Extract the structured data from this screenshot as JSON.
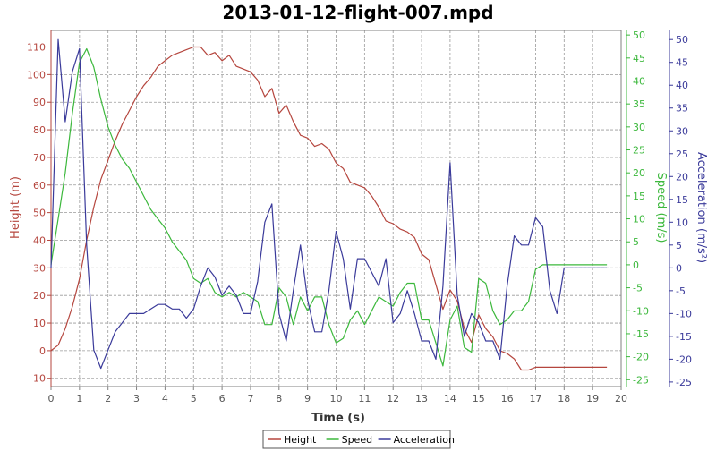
{
  "chart_data": {
    "type": "line",
    "title": "2013-01-12-flight-007.mpd",
    "xlabel": "Time (s)",
    "xlim": [
      0,
      20
    ],
    "xticks": [
      "0",
      "1",
      "2",
      "3",
      "4",
      "5",
      "6",
      "7",
      "8",
      "9",
      "10",
      "11",
      "12",
      "13",
      "14",
      "15",
      "16",
      "17",
      "18",
      "19",
      "20"
    ],
    "grid": true,
    "legend_placement": "bottom-center",
    "axes": [
      {
        "id": "height",
        "label": "Height (m)",
        "side": "left",
        "range": [
          -13,
          116
        ],
        "ticks": [
          "-10",
          "0",
          "10",
          "20",
          "30",
          "40",
          "50",
          "60",
          "70",
          "80",
          "90",
          "100",
          "110"
        ],
        "color": "#b5463e"
      },
      {
        "id": "speed",
        "label": "Speed (m/s)",
        "side": "right",
        "range": [
          -26.5,
          51
        ],
        "ticks": [
          "-25",
          "-20",
          "-15",
          "-10",
          "-5",
          "0",
          "5",
          "10",
          "15",
          "20",
          "25",
          "30",
          "35",
          "40",
          "45",
          "50"
        ],
        "color": "#3cb83c"
      },
      {
        "id": "accel",
        "label": "Acceleration (m/s²)",
        "side": "right",
        "range": [
          -26,
          52
        ],
        "ticks": [
          "-25",
          "-20",
          "-15",
          "-10",
          "-5",
          "0",
          "5",
          "10",
          "15",
          "20",
          "25",
          "30",
          "35",
          "40",
          "45",
          "50"
        ],
        "color": "#3a3a9a"
      }
    ],
    "series": [
      {
        "name": "Height",
        "axis": "height",
        "color": "#b5463e",
        "x": [
          0,
          0.25,
          0.5,
          0.75,
          1,
          1.25,
          1.5,
          1.75,
          2,
          2.25,
          2.5,
          2.75,
          3,
          3.25,
          3.5,
          3.75,
          4,
          4.25,
          4.5,
          4.75,
          5,
          5.25,
          5.5,
          5.75,
          6,
          6.25,
          6.5,
          6.75,
          7,
          7.25,
          7.5,
          7.75,
          8,
          8.25,
          8.5,
          8.75,
          9,
          9.25,
          9.5,
          9.75,
          10,
          10.25,
          10.5,
          10.75,
          11,
          11.25,
          11.5,
          11.75,
          12,
          12.25,
          12.5,
          12.75,
          13,
          13.25,
          13.5,
          13.75,
          14,
          14.25,
          14.5,
          14.75,
          15,
          15.25,
          15.5,
          15.75,
          16,
          16.25,
          16.5,
          16.75,
          17,
          17.25,
          17.5,
          17.75,
          18,
          18.25,
          18.5,
          18.75,
          19,
          19.25,
          19.5
        ],
        "y": [
          0,
          2,
          8,
          16,
          26,
          40,
          52,
          62,
          69,
          76,
          82,
          87,
          92,
          96,
          99,
          103,
          105,
          107,
          108,
          109,
          110,
          110,
          107,
          108,
          105,
          107,
          103,
          102,
          101,
          98,
          92,
          95,
          86,
          89,
          83,
          78,
          77,
          74,
          75,
          73,
          68,
          66,
          61,
          60,
          59,
          56,
          52,
          47,
          46,
          44,
          43,
          41,
          35,
          33,
          24,
          15,
          22,
          18,
          8,
          3,
          13,
          8,
          5,
          0,
          -1,
          -3,
          -7,
          -7,
          -6,
          -6,
          -6,
          -6,
          -6,
          -6,
          -6,
          -6,
          -6,
          -6,
          -6
        ]
      },
      {
        "name": "Speed",
        "axis": "speed",
        "color": "#3cb83c",
        "x": [
          0,
          0.25,
          0.5,
          0.75,
          1,
          1.25,
          1.5,
          1.75,
          2,
          2.25,
          2.5,
          2.75,
          3,
          3.25,
          3.5,
          3.75,
          4,
          4.25,
          4.5,
          4.75,
          5,
          5.25,
          5.5,
          5.75,
          6,
          6.25,
          6.5,
          6.75,
          7,
          7.25,
          7.5,
          7.75,
          8,
          8.25,
          8.5,
          8.75,
          9,
          9.25,
          9.5,
          9.75,
          10,
          10.25,
          10.5,
          10.75,
          11,
          11.25,
          11.5,
          11.75,
          12,
          12.25,
          12.5,
          12.75,
          13,
          13.25,
          13.5,
          13.75,
          14,
          14.25,
          14.5,
          14.75,
          15,
          15.25,
          15.5,
          15.75,
          16,
          16.25,
          16.5,
          16.75,
          17,
          17.25,
          17.5,
          17.75,
          18,
          18.25,
          18.5,
          18.75,
          19,
          19.25,
          19.5
        ],
        "y": [
          0,
          10,
          20,
          33,
          44,
          47,
          43,
          36,
          30,
          26,
          23,
          21,
          18,
          15,
          12,
          10,
          8,
          5,
          3,
          1,
          -3,
          -4,
          -3,
          -6,
          -7,
          -6,
          -7,
          -6,
          -7,
          -8,
          -13,
          -13,
          -5,
          -7,
          -13,
          -7,
          -10,
          -7,
          -7,
          -13,
          -17,
          -16,
          -12,
          -10,
          -13,
          -10,
          -7,
          -8,
          -9,
          -6,
          -4,
          -4,
          -12,
          -12,
          -17,
          -22,
          -12,
          -9,
          -18,
          -19,
          -3,
          -4,
          -10,
          -13,
          -12,
          -10,
          -10,
          -8,
          -1,
          0,
          0,
          0,
          0,
          0,
          0,
          0,
          0,
          0,
          0
        ]
      },
      {
        "name": "Acceleration",
        "axis": "accel",
        "color": "#3a3a9a",
        "x": [
          0,
          0.25,
          0.5,
          0.75,
          1,
          1.25,
          1.5,
          1.75,
          2,
          2.25,
          2.5,
          2.75,
          3,
          3.25,
          3.5,
          3.75,
          4,
          4.25,
          4.5,
          4.75,
          5,
          5.25,
          5.5,
          5.75,
          6,
          6.25,
          6.5,
          6.75,
          7,
          7.25,
          7.5,
          7.75,
          8,
          8.25,
          8.5,
          8.75,
          9,
          9.25,
          9.5,
          9.75,
          10,
          10.25,
          10.5,
          10.75,
          11,
          11.25,
          11.5,
          11.75,
          12,
          12.25,
          12.5,
          12.75,
          13,
          13.25,
          13.5,
          13.75,
          14,
          14.25,
          14.5,
          14.75,
          15,
          15.25,
          15.5,
          15.75,
          16,
          16.25,
          16.5,
          16.75,
          17,
          17.25,
          17.5,
          17.75,
          18,
          18.25,
          18.5,
          18.75,
          19,
          19.25,
          19.5
        ],
        "y": [
          0,
          50,
          32,
          43,
          48,
          5,
          -18,
          -22,
          -18,
          -14,
          -12,
          -10,
          -10,
          -10,
          -9,
          -8,
          -8,
          -9,
          -9,
          -11,
          -9,
          -4,
          0,
          -2,
          -6,
          -4,
          -6,
          -10,
          -10,
          -3,
          10,
          14,
          -10,
          -16,
          -5,
          5,
          -7,
          -14,
          -14,
          -5,
          8,
          2,
          -9,
          2,
          2,
          -1,
          -4,
          2,
          -12,
          -10,
          -5,
          -10,
          -16,
          -16,
          -20,
          -4,
          23,
          -6,
          -15,
          -10,
          -12,
          -16,
          -16,
          -20,
          -4,
          7,
          5,
          5,
          11,
          9,
          -5,
          -10,
          0,
          0,
          0,
          0,
          0,
          0,
          0
        ]
      }
    ]
  }
}
